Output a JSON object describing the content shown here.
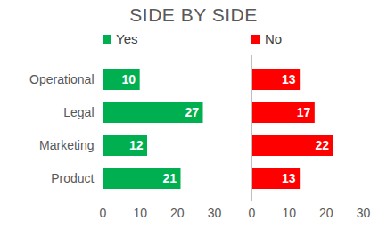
{
  "chart_data": {
    "type": "bar",
    "title": "SIDE BY SIDE",
    "categories": [
      "Operational",
      "Legal",
      "Marketing",
      "Product"
    ],
    "series": [
      {
        "name": "Yes",
        "color": "#00b050",
        "values": [
          10,
          27,
          12,
          21
        ]
      },
      {
        "name": "No",
        "color": "#ff0000",
        "values": [
          13,
          17,
          22,
          13
        ]
      }
    ],
    "xlim": [
      0,
      30
    ],
    "xticks": [
      0,
      10,
      20,
      30
    ],
    "orientation": "horizontal",
    "data_labels": true,
    "grid": false,
    "legend": "top"
  }
}
